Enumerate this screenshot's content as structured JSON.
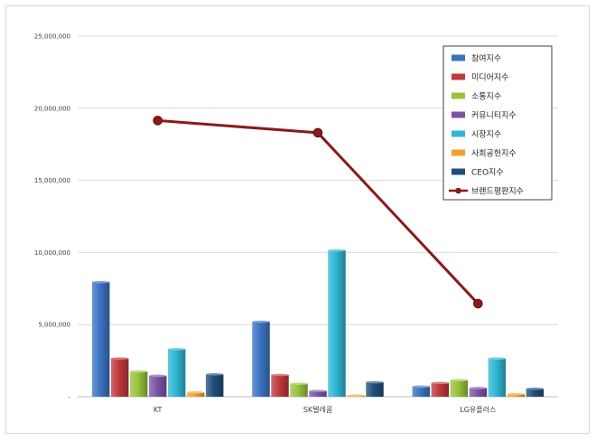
{
  "chart_data": {
    "type": "bar",
    "categories": [
      "KT",
      "SK텔레콤",
      "LG유플러스"
    ],
    "series": [
      {
        "name": "참여지수",
        "values": [
          7950000,
          5200000,
          700000
        ],
        "color": "#3b73c2"
      },
      {
        "name": "미디어지수",
        "values": [
          2650000,
          1500000,
          950000
        ],
        "color": "#c0393b"
      },
      {
        "name": "소통지수",
        "values": [
          1750000,
          900000,
          1150000
        ],
        "color": "#98c23a"
      },
      {
        "name": "커뮤니티지수",
        "values": [
          1450000,
          400000,
          600000
        ],
        "color": "#7c54a8"
      },
      {
        "name": "시장지수",
        "values": [
          3300000,
          10150000,
          2650000
        ],
        "color": "#2eb6d3"
      },
      {
        "name": "사회공헌지수",
        "values": [
          300000,
          80000,
          180000
        ],
        "color": "#f2a12e"
      },
      {
        "name": "CEO지수",
        "values": [
          1550000,
          1000000,
          550000
        ],
        "color": "#1f4e7a"
      }
    ],
    "line_series": {
      "name": "브랜드평판지수",
      "values": [
        19150000,
        18300000,
        6450000
      ],
      "color": "#8b1a1a"
    },
    "ylim": [
      0,
      25000000
    ],
    "yticks": [
      "-",
      "5,000,000",
      "10,000,000",
      "15,000,000",
      "20,000,000",
      "25,000,000"
    ],
    "grid": true,
    "legend_position": "top-right"
  }
}
